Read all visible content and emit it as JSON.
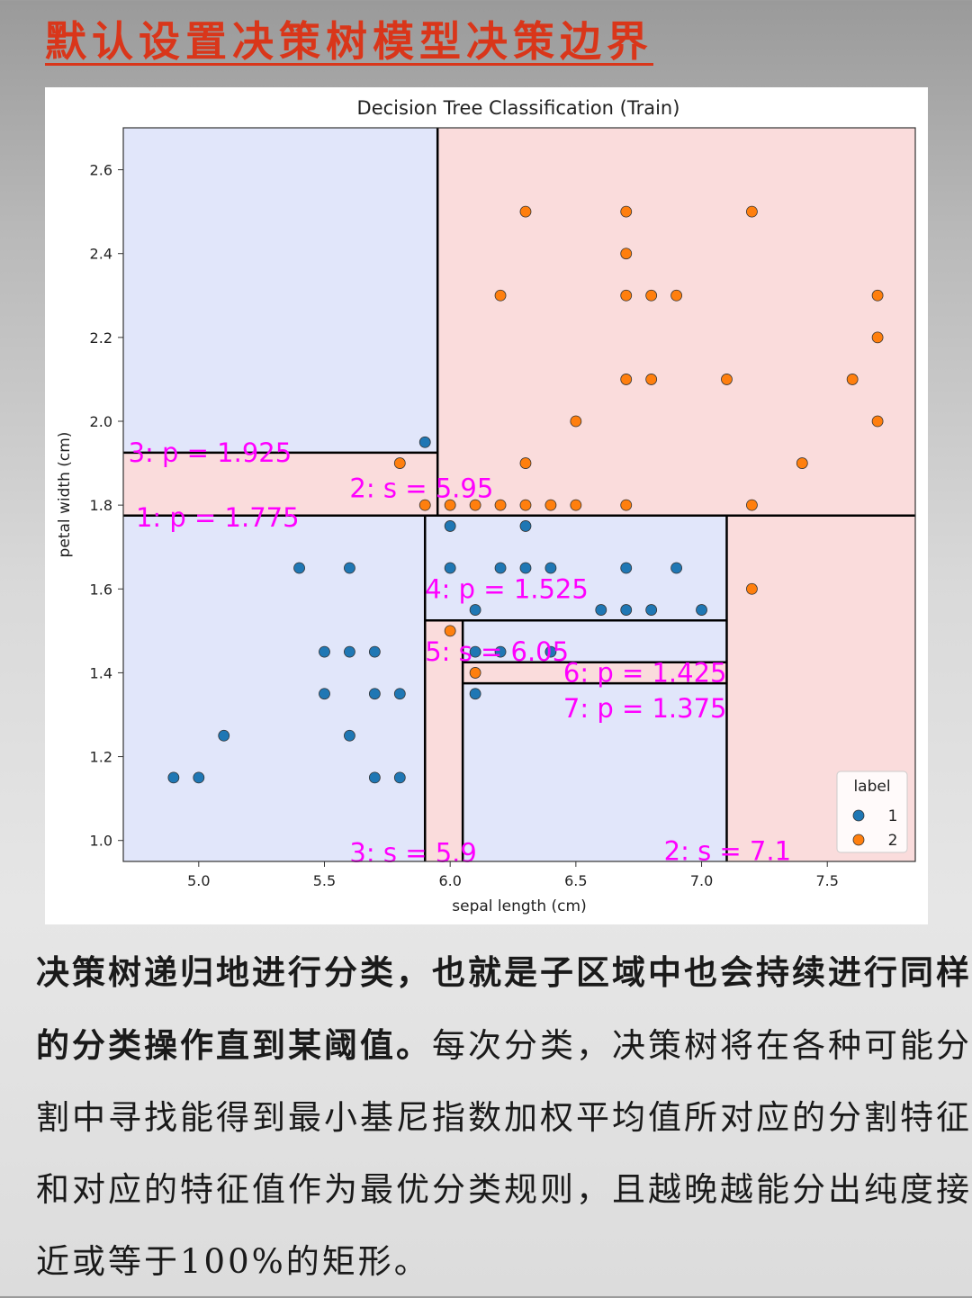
{
  "page_title": "默认设置决策树模型决策边界",
  "chart_data": {
    "type": "scatter",
    "title": "Decision Tree Classification (Train)",
    "xlabel": "sepal length (cm)",
    "ylabel": "petal width (cm)",
    "xlim": [
      4.7,
      7.85
    ],
    "ylim": [
      0.95,
      2.7
    ],
    "xticks": [
      5.0,
      5.5,
      6.0,
      6.5,
      7.0,
      7.5
    ],
    "yticks": [
      1.0,
      1.2,
      1.4,
      1.6,
      1.8,
      2.0,
      2.2,
      2.4,
      2.6
    ],
    "legend": {
      "title": "label",
      "position": "bottom-right",
      "entries": [
        "1",
        "2"
      ]
    },
    "colors": {
      "1": "#1f77b4",
      "2": "#ff7f0e",
      "region_1": "#e1e6fa",
      "region_2": "#fadcdc",
      "annotation": "#ff00ff"
    },
    "regions": [
      {
        "x0": 4.7,
        "x1": 5.95,
        "y0": 1.925,
        "y1": 2.7,
        "label": "1"
      },
      {
        "x0": 5.95,
        "x1": 7.85,
        "y0": 1.775,
        "y1": 2.7,
        "label": "2"
      },
      {
        "x0": 4.7,
        "x1": 5.95,
        "y0": 1.775,
        "y1": 1.925,
        "label": "2"
      },
      {
        "x0": 4.7,
        "x1": 5.9,
        "y0": 0.95,
        "y1": 1.775,
        "label": "1"
      },
      {
        "x0": 5.9,
        "x1": 7.1,
        "y0": 1.525,
        "y1": 1.775,
        "label": "1"
      },
      {
        "x0": 5.9,
        "x1": 6.05,
        "y0": 0.95,
        "y1": 1.525,
        "label": "2"
      },
      {
        "x0": 6.05,
        "x1": 7.1,
        "y0": 1.425,
        "y1": 1.525,
        "label": "1"
      },
      {
        "x0": 6.05,
        "x1": 7.1,
        "y0": 1.375,
        "y1": 1.425,
        "label": "2"
      },
      {
        "x0": 6.05,
        "x1": 7.1,
        "y0": 0.95,
        "y1": 1.375,
        "label": "1"
      },
      {
        "x0": 7.1,
        "x1": 7.85,
        "y0": 0.95,
        "y1": 1.775,
        "label": "2"
      }
    ],
    "split_lines": [
      {
        "x0": 4.7,
        "x1": 5.95,
        "y0": 1.925,
        "y1": 1.925
      },
      {
        "x0": 5.95,
        "x1": 5.95,
        "y0": 1.775,
        "y1": 2.7
      },
      {
        "x0": 4.7,
        "x1": 7.85,
        "y0": 1.775,
        "y1": 1.775
      },
      {
        "x0": 5.9,
        "x1": 5.9,
        "y0": 0.95,
        "y1": 1.775
      },
      {
        "x0": 7.1,
        "x1": 7.1,
        "y0": 0.95,
        "y1": 1.775
      },
      {
        "x0": 5.9,
        "x1": 7.1,
        "y0": 1.525,
        "y1": 1.525
      },
      {
        "x0": 6.05,
        "x1": 6.05,
        "y0": 0.95,
        "y1": 1.525
      },
      {
        "x0": 6.05,
        "x1": 7.1,
        "y0": 1.425,
        "y1": 1.425
      },
      {
        "x0": 6.05,
        "x1": 7.1,
        "y0": 1.375,
        "y1": 1.375
      }
    ],
    "annotations": [
      {
        "text": "3: p = 1.925",
        "x": 4.72,
        "y": 1.925
      },
      {
        "text": "2: s = 5.95",
        "x": 5.6,
        "y": 1.84
      },
      {
        "text": "1: p = 1.775",
        "x": 4.75,
        "y": 1.77
      },
      {
        "text": "4: p = 1.525",
        "x": 5.9,
        "y": 1.6
      },
      {
        "text": "5: s = 6.05",
        "x": 5.9,
        "y": 1.45
      },
      {
        "text": "6: p = 1.425",
        "x": 6.45,
        "y": 1.4
      },
      {
        "text": "7: p = 1.375",
        "x": 6.45,
        "y": 1.315
      },
      {
        "text": "3: s = 5.9",
        "x": 5.6,
        "y": 0.97
      },
      {
        "text": "2: s = 7.1",
        "x": 6.85,
        "y": 0.975
      }
    ],
    "series": [
      {
        "name": "1",
        "points": [
          [
            4.9,
            1.15
          ],
          [
            5.0,
            1.15
          ],
          [
            5.1,
            1.25
          ],
          [
            5.4,
            1.65
          ],
          [
            5.5,
            1.45
          ],
          [
            5.5,
            1.35
          ],
          [
            5.6,
            1.65
          ],
          [
            5.6,
            1.45
          ],
          [
            5.6,
            1.25
          ],
          [
            5.7,
            1.45
          ],
          [
            5.7,
            1.35
          ],
          [
            5.7,
            1.15
          ],
          [
            5.8,
            1.35
          ],
          [
            5.8,
            1.15
          ],
          [
            5.9,
            1.95
          ],
          [
            6.0,
            1.75
          ],
          [
            6.0,
            1.65
          ],
          [
            6.1,
            1.55
          ],
          [
            6.1,
            1.45
          ],
          [
            6.1,
            1.35
          ],
          [
            6.2,
            1.65
          ],
          [
            6.2,
            1.45
          ],
          [
            6.3,
            1.75
          ],
          [
            6.3,
            1.65
          ],
          [
            6.4,
            1.65
          ],
          [
            6.4,
            1.45
          ],
          [
            6.6,
            1.55
          ],
          [
            6.7,
            1.65
          ],
          [
            6.7,
            1.55
          ],
          [
            6.8,
            1.55
          ],
          [
            6.9,
            1.65
          ],
          [
            7.0,
            1.55
          ]
        ]
      },
      {
        "name": "2",
        "points": [
          [
            5.8,
            1.9
          ],
          [
            5.9,
            1.8
          ],
          [
            6.0,
            1.5
          ],
          [
            6.0,
            1.8
          ],
          [
            6.1,
            1.8
          ],
          [
            6.1,
            1.4
          ],
          [
            6.2,
            2.3
          ],
          [
            6.2,
            1.8
          ],
          [
            6.3,
            2.5
          ],
          [
            6.3,
            1.9
          ],
          [
            6.3,
            1.8
          ],
          [
            6.4,
            1.8
          ],
          [
            6.5,
            2.0
          ],
          [
            6.5,
            1.8
          ],
          [
            6.7,
            2.5
          ],
          [
            6.7,
            2.4
          ],
          [
            6.7,
            2.3
          ],
          [
            6.7,
            2.1
          ],
          [
            6.7,
            1.8
          ],
          [
            6.8,
            2.3
          ],
          [
            6.8,
            2.1
          ],
          [
            6.9,
            2.3
          ],
          [
            7.1,
            2.1
          ],
          [
            7.2,
            2.5
          ],
          [
            7.2,
            1.8
          ],
          [
            7.2,
            1.6
          ],
          [
            7.4,
            1.9
          ],
          [
            7.6,
            2.1
          ],
          [
            7.7,
            2.3
          ],
          [
            7.7,
            2.2
          ],
          [
            7.7,
            2.0
          ]
        ]
      }
    ]
  },
  "body": {
    "line1_bold": "决策树递归地进行分类，也就是子区域中也会持续进行同样的分类操作直到某阈值。",
    "rest": "每次分类，决策树将在各种可能分割中寻找能得到最小基尼指数加权平均值所对应的分割特征和对应的特征值作为最优分类规则，且越晚越能分出纯度接近或等于100%的矩形。"
  }
}
